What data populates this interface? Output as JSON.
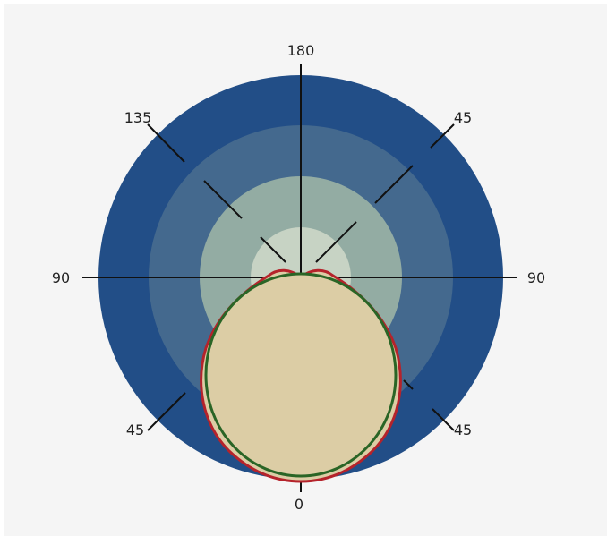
{
  "diagram": {
    "angle_labels": {
      "top": "180",
      "upper_left": "135",
      "upper_right": "45",
      "left": "90",
      "right": "90",
      "lower_left": "45",
      "lower_right": "45",
      "bottom": "0"
    },
    "colors": {
      "ring_outer": "#224e87",
      "ring_2": "#44698e",
      "ring_3": "#93aca3",
      "ring_inner": "#c7d3c4",
      "pattern_fill": "#dccda5",
      "pattern_outline_red": "#b5232b",
      "pattern_outline_green": "#2a6526",
      "axis_lines": "#111111",
      "background": "#f5f5f5"
    }
  }
}
